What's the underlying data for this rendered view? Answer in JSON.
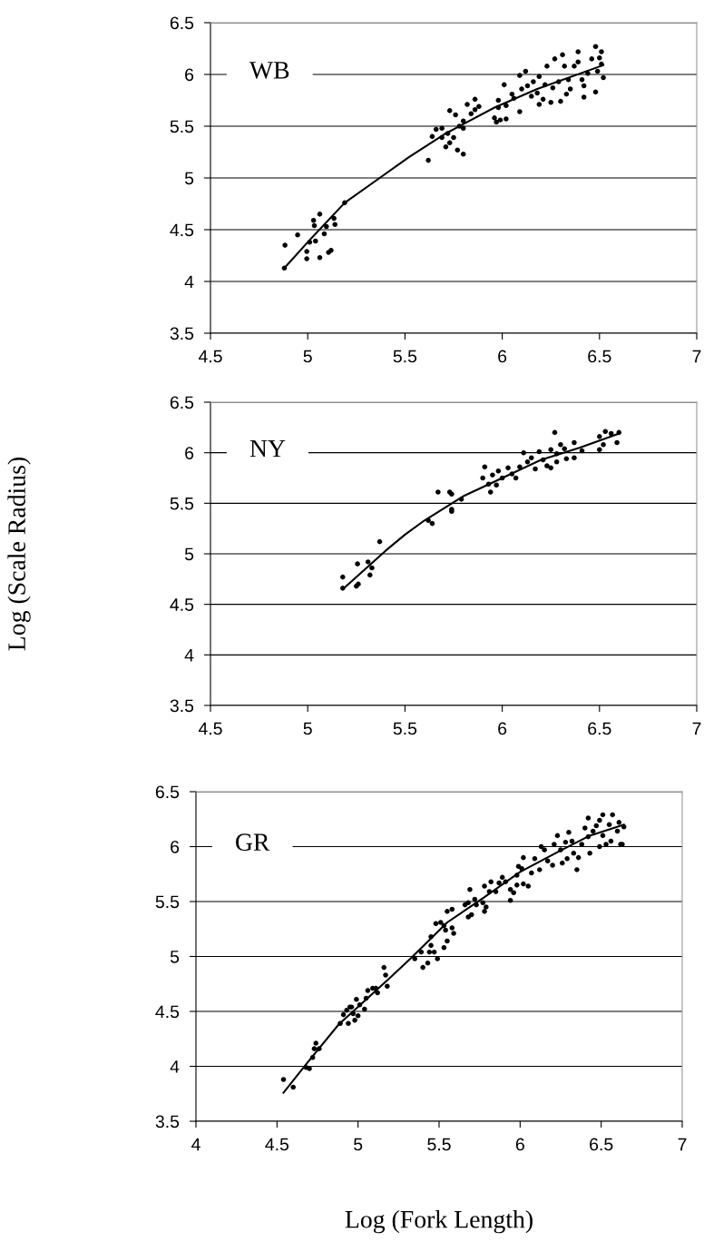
{
  "chart_data": [
    {
      "type": "scatter",
      "annotations": [
        "WB"
      ],
      "xlim": [
        4.5,
        7
      ],
      "xticks": [
        4.5,
        5,
        5.5,
        6,
        6.5,
        7
      ],
      "ylim": [
        3.5,
        6.5
      ],
      "yticks": [
        3.5,
        4,
        4.5,
        5,
        5.5,
        6,
        6.5
      ],
      "grid": "y",
      "series": [
        {
          "marker": "circle",
          "color": "#000000",
          "x": [
            4.88,
            4.883,
            4.948,
            4.995,
            4.995,
            5.03,
            5.034,
            5.062,
            5.01,
            5.04,
            5.062,
            5.085,
            5.096,
            5.107,
            5.12,
            5.135,
            5.14,
            5.19,
            5.62,
            5.64,
            5.66,
            5.69,
            5.69,
            5.71,
            5.72,
            5.73,
            5.73,
            5.75,
            5.76,
            5.77,
            5.78,
            5.8,
            5.8,
            5.8,
            5.82,
            5.84,
            5.86,
            5.86,
            5.88,
            5.96,
            5.97,
            5.99,
            6.02,
            5.98,
            5.98,
            6.01,
            6.02,
            6.05,
            6.06,
            6.09,
            6.09,
            6.1,
            6.12,
            6.13,
            6.15,
            6.16,
            6.18,
            6.19,
            6.19,
            6.21,
            6.22,
            6.23,
            6.25,
            6.26,
            6.27,
            6.29,
            6.3,
            6.31,
            6.32,
            6.33,
            6.34,
            6.35,
            6.37,
            6.39,
            6.39,
            6.41,
            6.42,
            6.42,
            6.44,
            6.46,
            6.48,
            6.48,
            6.49,
            6.5,
            6.51,
            6.51,
            6.52
          ],
          "values": [
            4.13,
            4.35,
            4.45,
            4.29,
            4.22,
            4.59,
            4.54,
            4.65,
            4.38,
            4.39,
            4.23,
            4.46,
            4.53,
            4.28,
            4.3,
            4.61,
            4.55,
            4.76,
            5.17,
            5.4,
            5.47,
            5.48,
            5.39,
            5.3,
            5.43,
            5.34,
            5.65,
            5.39,
            5.61,
            5.27,
            5.5,
            5.23,
            5.48,
            5.55,
            5.71,
            5.62,
            5.76,
            5.66,
            5.69,
            5.58,
            5.54,
            5.56,
            5.57,
            5.68,
            5.75,
            5.9,
            5.7,
            5.81,
            5.77,
            5.64,
            5.99,
            5.86,
            6.03,
            5.89,
            5.79,
            5.93,
            5.82,
            5.98,
            5.71,
            5.76,
            5.9,
            6.08,
            5.73,
            5.87,
            6.15,
            5.93,
            5.74,
            6.19,
            6.08,
            5.81,
            5.95,
            5.86,
            6.08,
            6.22,
            6.12,
            5.95,
            5.78,
            5.89,
            6.01,
            6.15,
            6.27,
            5.83,
            6.03,
            6.16,
            6.22,
            6.1,
            5.97
          ]
        },
        {
          "type": "line",
          "color": "#000000",
          "x": [
            4.88,
            5.01,
            5.19,
            5.37,
            5.52,
            5.71,
            5.96,
            6.18,
            6.52
          ],
          "values": [
            4.13,
            4.4,
            4.76,
            5.0,
            5.2,
            5.43,
            5.68,
            5.86,
            6.09
          ]
        }
      ]
    },
    {
      "type": "scatter",
      "annotations": [
        "NY"
      ],
      "ylabel": "Log (Scale Radius)",
      "xlim": [
        4.5,
        7
      ],
      "xticks": [
        4.5,
        5,
        5.5,
        6,
        6.5,
        7
      ],
      "ylim": [
        3.5,
        6.5
      ],
      "yticks": [
        3.5,
        4,
        4.5,
        5,
        5.5,
        6,
        6.5
      ],
      "grid": "y",
      "series": [
        {
          "marker": "circle",
          "color": "#000000",
          "x": [
            5.18,
            5.18,
            5.25,
            5.26,
            5.256,
            5.31,
            5.33,
            5.32,
            5.37,
            5.62,
            5.64,
            5.67,
            5.73,
            5.74,
            5.74,
            5.74,
            5.79,
            5.9,
            5.91,
            5.93,
            5.94,
            5.95,
            5.97,
            5.98,
            6.0,
            6.03,
            6.05,
            6.07,
            6.09,
            6.11,
            6.13,
            6.15,
            6.17,
            6.19,
            6.21,
            6.23,
            6.25,
            6.25,
            6.27,
            6.28,
            6.28,
            6.3,
            6.32,
            6.33,
            6.37,
            6.37,
            6.41,
            6.5,
            6.5,
            6.52,
            6.53,
            6.56,
            6.59,
            6.6
          ],
          "values": [
            4.66,
            4.77,
            4.68,
            4.7,
            4.9,
            4.92,
            4.86,
            4.79,
            5.12,
            5.33,
            5.3,
            5.61,
            5.61,
            5.59,
            5.42,
            5.44,
            5.54,
            5.75,
            5.86,
            5.69,
            5.61,
            5.78,
            5.68,
            5.82,
            5.75,
            5.85,
            5.79,
            5.75,
            5.86,
            6.0,
            5.91,
            5.95,
            5.84,
            6.01,
            5.93,
            5.87,
            6.03,
            5.85,
            6.2,
            5.99,
            5.91,
            6.08,
            6.04,
            5.94,
            6.1,
            5.95,
            6.02,
            6.16,
            6.03,
            6.08,
            6.21,
            6.19,
            6.1,
            6.2
          ]
        },
        {
          "type": "line",
          "color": "#000000",
          "x": [
            5.18,
            5.4,
            5.5,
            5.6,
            5.8,
            6.0,
            6.2,
            6.4,
            6.6
          ],
          "values": [
            4.65,
            5.03,
            5.19,
            5.33,
            5.57,
            5.75,
            5.93,
            6.05,
            6.19
          ]
        }
      ]
    },
    {
      "type": "scatter",
      "annotations": [
        "GR"
      ],
      "xlabel": "Log (Fork Length)",
      "xlim": [
        4,
        7
      ],
      "xticks": [
        4,
        4.5,
        5,
        5.5,
        6,
        6.5,
        7
      ],
      "ylim": [
        3.5,
        6.5
      ],
      "yticks": [
        3.5,
        4,
        4.5,
        5,
        5.5,
        6,
        6.5
      ],
      "grid": "y",
      "series": [
        {
          "marker": "circle",
          "color": "#000000",
          "x": [
            4.54,
            4.6,
            4.68,
            4.7,
            4.72,
            4.74,
            4.73,
            4.76,
            4.89,
            4.91,
            4.93,
            4.95,
            4.96,
            4.94,
            4.97,
            4.98,
            4.99,
            5.0,
            5.04,
            5.01,
            5.05,
            5.06,
            5.09,
            5.11,
            5.12,
            5.16,
            5.17,
            5.18,
            5.35,
            5.39,
            5.4,
            5.43,
            5.44,
            5.45,
            5.45,
            5.47,
            5.49,
            5.48,
            5.51,
            5.53,
            5.53,
            5.54,
            5.55,
            5.55,
            5.58,
            5.58,
            5.59,
            5.66,
            5.68,
            5.68,
            5.69,
            5.7,
            5.72,
            5.73,
            5.77,
            5.78,
            5.78,
            5.79,
            5.81,
            5.82,
            5.85,
            5.87,
            5.89,
            5.91,
            5.94,
            5.94,
            5.96,
            5.98,
            5.98,
            5.99,
            6.01,
            6.02,
            6.02,
            6.05,
            6.07,
            6.09,
            6.12,
            6.13,
            6.15,
            6.17,
            6.2,
            6.21,
            6.23,
            6.25,
            6.26,
            6.28,
            6.3,
            6.32,
            6.29,
            6.33,
            6.35,
            6.36,
            6.38,
            6.4,
            6.42,
            6.42,
            6.43,
            6.45,
            6.47,
            6.49,
            6.49,
            6.51,
            6.51,
            6.53,
            6.55,
            6.56,
            6.57,
            6.6,
            6.61,
            6.62,
            6.64,
            6.63
          ],
          "values": [
            3.88,
            3.81,
            3.99,
            3.98,
            4.08,
            4.21,
            4.16,
            4.16,
            4.39,
            4.47,
            4.51,
            4.54,
            4.54,
            4.39,
            4.48,
            4.42,
            4.61,
            4.46,
            4.52,
            4.56,
            4.62,
            4.69,
            4.71,
            4.71,
            4.67,
            4.9,
            4.83,
            4.73,
            4.98,
            5.04,
            4.9,
            4.94,
            5.04,
            5.1,
            5.18,
            5.04,
            4.98,
            5.3,
            5.31,
            5.28,
            5.08,
            5.24,
            5.14,
            5.41,
            5.43,
            5.26,
            5.21,
            5.47,
            5.49,
            5.36,
            5.61,
            5.38,
            5.52,
            5.47,
            5.49,
            5.41,
            5.64,
            5.45,
            5.59,
            5.68,
            5.59,
            5.67,
            5.72,
            5.68,
            5.61,
            5.51,
            5.58,
            5.65,
            5.74,
            5.82,
            5.8,
            5.66,
            5.9,
            5.64,
            5.76,
            5.89,
            5.79,
            6.0,
            5.97,
            5.87,
            5.83,
            6.02,
            6.1,
            5.97,
            5.85,
            6.04,
            6.13,
            6.05,
            5.89,
            5.94,
            5.79,
            5.9,
            6.02,
            6.17,
            6.09,
            6.26,
            5.94,
            6.14,
            6.19,
            6.24,
            6.0,
            6.29,
            6.1,
            6.02,
            6.2,
            6.05,
            6.29,
            6.14,
            6.22,
            6.02,
            6.18,
            6.02
          ]
        },
        {
          "type": "line",
          "color": "#000000",
          "x": [
            4.54,
            4.68,
            4.88,
            5.2,
            5.33,
            5.55,
            5.78,
            6.0,
            6.23,
            6.43,
            6.64
          ],
          "values": [
            3.76,
            4.02,
            4.38,
            4.81,
            4.99,
            5.31,
            5.54,
            5.77,
            5.95,
            6.1,
            6.2
          ]
        }
      ]
    }
  ]
}
